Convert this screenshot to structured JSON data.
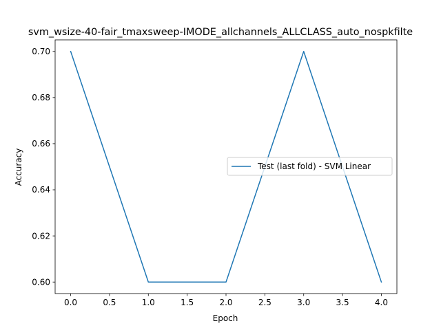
{
  "chart_data": {
    "type": "line",
    "title": "svm_wsize-40-fair_tmaxsweep-IMODE_allchannels_ALLCLASS_auto_nospkfilte",
    "xlabel": "Epoch",
    "ylabel": "Accuracy",
    "x": [
      0,
      1,
      2,
      3,
      4
    ],
    "series": [
      {
        "name": "Test (last fold) - SVM Linear",
        "color": "#1f77b4",
        "values": [
          0.7,
          0.6,
          0.6,
          0.7,
          0.6
        ]
      }
    ],
    "xlim": [
      -0.2,
      4.2
    ],
    "ylim": [
      0.595,
      0.705
    ],
    "xticks": [
      0.0,
      0.5,
      1.0,
      1.5,
      2.0,
      2.5,
      3.0,
      3.5,
      4.0
    ],
    "xtick_labels": [
      "0.0",
      "0.5",
      "1.0",
      "1.5",
      "2.0",
      "2.5",
      "3.0",
      "3.5",
      "4.0"
    ],
    "yticks": [
      0.6,
      0.62,
      0.64,
      0.66,
      0.68,
      0.7
    ],
    "ytick_labels": [
      "0.60",
      "0.62",
      "0.64",
      "0.66",
      "0.68",
      "0.70"
    ],
    "grid": false,
    "legend_position": "center-right"
  }
}
